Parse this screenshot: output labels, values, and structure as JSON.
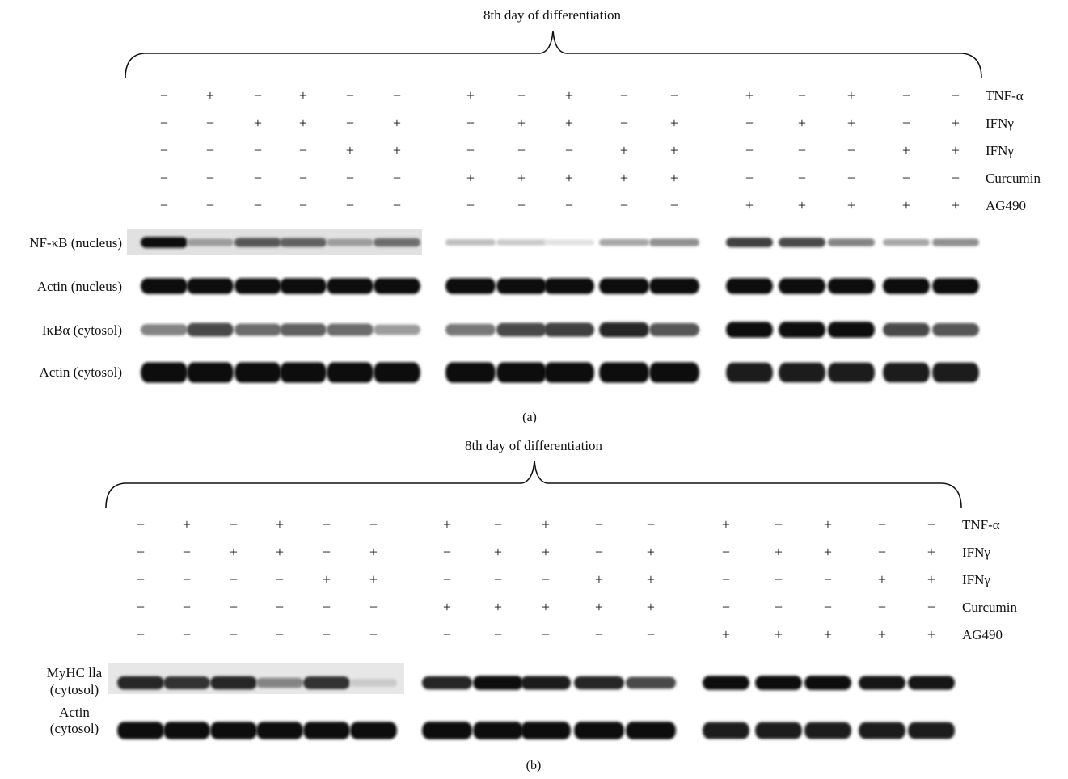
{
  "panels": [
    {
      "heading": "8th day of differentiation",
      "caption": "(a)",
      "treatments": [
        {
          "label": "TNF-α",
          "signs": [
            "−",
            "+",
            "−",
            "+",
            "−",
            "−",
            "+",
            "−",
            "+",
            "−",
            "−",
            "+",
            "−",
            "+",
            "−",
            "−"
          ]
        },
        {
          "label": "IFNγ",
          "signs": [
            "−",
            "−",
            "+",
            "+",
            "−",
            "+",
            "−",
            "+",
            "+",
            "−",
            "+",
            "−",
            "+",
            "+",
            "−",
            "+"
          ]
        },
        {
          "label": "IFNγ",
          "signs": [
            "−",
            "−",
            "−",
            "−",
            "+",
            "+",
            "−",
            "−",
            "−",
            "+",
            "+",
            "−",
            "−",
            "−",
            "+",
            "+"
          ]
        },
        {
          "label": "Curcumin",
          "signs": [
            "−",
            "−",
            "−",
            "−",
            "−",
            "−",
            "+",
            "+",
            "+",
            "+",
            "+",
            "−",
            "−",
            "−",
            "−",
            "−"
          ]
        },
        {
          "label": "AG490",
          "signs": [
            "−",
            "−",
            "−",
            "−",
            "−",
            "−",
            "−",
            "−",
            "−",
            "−",
            "−",
            "+",
            "+",
            "+",
            "+",
            "+"
          ]
        }
      ],
      "blots": [
        {
          "label": "NF-κB (nucleus)",
          "intensity": [
            0.95,
            0.35,
            0.65,
            0.6,
            0.35,
            0.55,
            0.2,
            0.15,
            0.05,
            0.3,
            0.4,
            0.75,
            0.7,
            0.45,
            0.3,
            0.4
          ]
        },
        {
          "label": "Actin (nucleus)",
          "intensity": [
            0.95,
            0.95,
            0.95,
            0.95,
            0.95,
            0.95,
            0.95,
            0.95,
            0.95,
            0.95,
            0.95,
            0.95,
            0.95,
            0.95,
            0.95,
            0.95
          ]
        },
        {
          "label": "IκBα (cytosol)",
          "intensity": [
            0.45,
            0.7,
            0.55,
            0.6,
            0.55,
            0.35,
            0.5,
            0.7,
            0.75,
            0.85,
            0.65,
            0.95,
            0.97,
            0.98,
            0.7,
            0.65
          ]
        },
        {
          "label": "Actin (cytosol)",
          "intensity": [
            0.95,
            0.95,
            0.95,
            0.95,
            0.95,
            0.95,
            0.95,
            0.95,
            0.95,
            0.95,
            0.95,
            0.9,
            0.9,
            0.9,
            0.9,
            0.9
          ]
        }
      ]
    },
    {
      "heading": "8th day of differentiation",
      "caption": "(b)",
      "treatments": [
        {
          "label": "TNF-α",
          "signs": [
            "−",
            "+",
            "−",
            "+",
            "−",
            "−",
            "+",
            "−",
            "+",
            "−",
            "−",
            "+",
            "−",
            "+",
            "−",
            "−"
          ]
        },
        {
          "label": "IFNγ",
          "signs": [
            "−",
            "−",
            "+",
            "+",
            "−",
            "+",
            "−",
            "+",
            "+",
            "−",
            "+",
            "−",
            "+",
            "+",
            "−",
            "+"
          ]
        },
        {
          "label": "IFNγ",
          "signs": [
            "−",
            "−",
            "−",
            "−",
            "+",
            "+",
            "−",
            "−",
            "−",
            "+",
            "+",
            "−",
            "−",
            "−",
            "+",
            "+"
          ]
        },
        {
          "label": "Curcumin",
          "signs": [
            "−",
            "−",
            "−",
            "−",
            "−",
            "−",
            "+",
            "+",
            "+",
            "+",
            "+",
            "−",
            "−",
            "−",
            "−",
            "−"
          ]
        },
        {
          "label": "AG490",
          "signs": [
            "−",
            "−",
            "−",
            "−",
            "−",
            "−",
            "−",
            "−",
            "−",
            "−",
            "−",
            "+",
            "+",
            "+",
            "+",
            "+"
          ]
        }
      ],
      "blots": [
        {
          "label_lines": [
            "MyHC lla",
            "(cytosol)"
          ],
          "intensity": [
            0.85,
            0.8,
            0.85,
            0.45,
            0.8,
            0.15,
            0.85,
            0.95,
            0.9,
            0.85,
            0.7,
            0.95,
            0.97,
            0.97,
            0.93,
            0.92
          ]
        },
        {
          "label_lines": [
            "Actin",
            "(cytosol)"
          ],
          "intensity": [
            0.95,
            0.95,
            0.95,
            0.95,
            0.95,
            0.95,
            0.97,
            0.97,
            0.97,
            0.97,
            0.97,
            0.9,
            0.9,
            0.9,
            0.9,
            0.9
          ]
        }
      ]
    }
  ]
}
